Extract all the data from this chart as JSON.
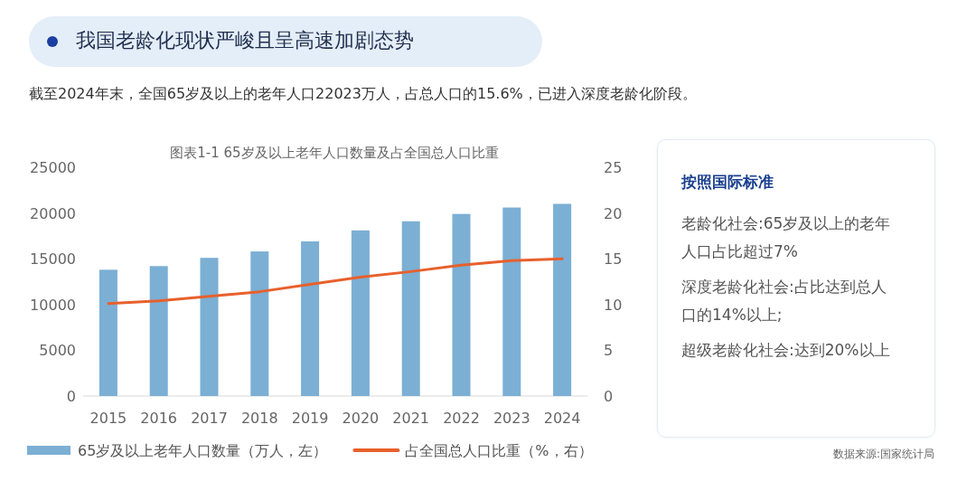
{
  "chart_data": {
    "type": "bar",
    "title": "我国老龄化现状严峻且呈高速加剧态势",
    "subtitle": "截至2024年末，全国65岁及以上的老年人口22023万人，占总人口的15.6%，已进入深度老龄化阶段。",
    "categories": [
      "2015",
      "2016",
      "2017",
      "2018",
      "2019",
      "2020",
      "2021",
      "2022",
      "2023",
      "2024"
    ],
    "series": [
      {
        "name": "65岁及以上老年人口数量（万人，左）",
        "color": "#7bafd4",
        "values": [
          13800,
          14200,
          15100,
          15800,
          16900,
          18100,
          19100,
          19900,
          20600,
          21000
        ]
      },
      {
        "name": "占全国总人口比重（%，右）",
        "type": "line",
        "axis": "y2",
        "color": "#e8602c",
        "values": [
          10.1,
          10.4,
          10.9,
          11.4,
          12.2,
          13.0,
          13.6,
          14.3,
          14.8,
          15.0
        ]
      }
    ],
    "ylim": [
      0,
      25000
    ],
    "yticks": [
      0,
      5000,
      10000,
      15000,
      20000,
      25000
    ],
    "y2lim": [
      0,
      25
    ],
    "y2ticks": [
      0,
      5,
      10,
      15,
      20,
      25
    ],
    "legend": "bottom",
    "grid": false,
    "marker": "none",
    "annotations": [
      "图表1-1 65岁及以上老年人口数量及占全国总人口比重",
      "按照国际标准",
      "老龄化社会:65岁及以上的老年人口占比超过7%",
      "深度老龄化社会:占比达到总人口的14%以上;",
      "超级老龄化社会:达到20%以上",
      "数据来源:国家统计局"
    ]
  }
}
